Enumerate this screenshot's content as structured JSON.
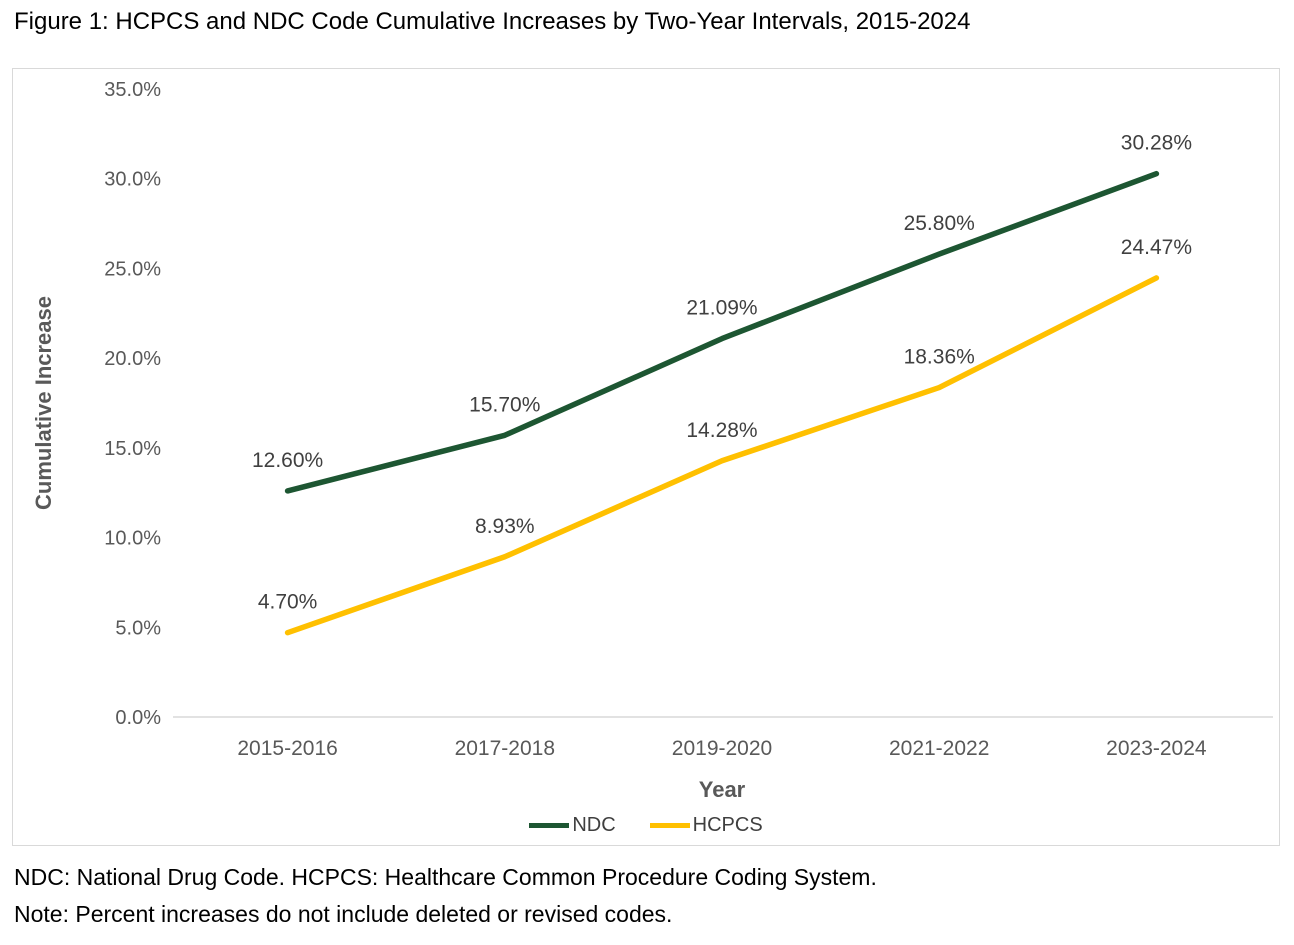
{
  "title": "Figure 1: HCPCS and NDC Code Cumulative Increases by Two-Year Intervals, 2015-2024",
  "chart_data": {
    "type": "line",
    "categories": [
      "2015-2016",
      "2017-2018",
      "2019-2020",
      "2021-2022",
      "2023-2024"
    ],
    "series": [
      {
        "name": "NDC",
        "color": "#1d5632",
        "values": [
          12.6,
          15.7,
          21.09,
          25.8,
          30.28
        ],
        "labels": [
          "12.60%",
          "15.70%",
          "21.09%",
          "25.80%",
          "30.28%"
        ]
      },
      {
        "name": "HCPCS",
        "color": "#ffc000",
        "values": [
          4.7,
          8.93,
          14.28,
          18.36,
          24.47
        ],
        "labels": [
          "4.70%",
          "8.93%",
          "14.28%",
          "18.36%",
          "24.47%"
        ]
      }
    ],
    "xlabel": "Year",
    "ylabel": "Cumulative Increase",
    "ylim": [
      0,
      35
    ],
    "ytick_step": 5,
    "ytick_labels": [
      "0.0%",
      "5.0%",
      "10.0%",
      "15.0%",
      "20.0%",
      "25.0%",
      "30.0%",
      "35.0%"
    ],
    "grid": false,
    "legend_position": "bottom"
  },
  "footnotes": {
    "line1": "NDC: National Drug Code. HCPCS: Healthcare Common Procedure Coding System.",
    "line2": "Note: Percent increases do not include deleted or revised codes."
  },
  "colors": {
    "ndc": "#1d5632",
    "hcpcs": "#ffc000",
    "axis_text": "#595959",
    "data_label": "#404040",
    "border": "#d9d9d9"
  }
}
